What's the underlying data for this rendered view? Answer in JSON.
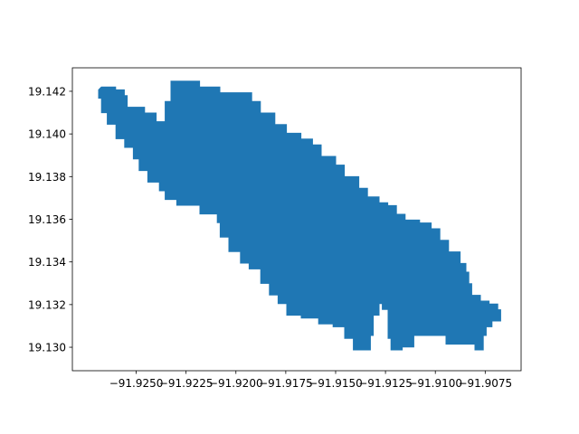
{
  "chart_data": {
    "type": "area",
    "title": "",
    "xlabel": "",
    "ylabel": "",
    "xlim": [
      -91.9282,
      -91.9057
    ],
    "ylim": [
      19.1289,
      19.1431
    ],
    "grid": false,
    "legend": "none",
    "x_ticks": [
      {
        "value": -91.925,
        "label": "−91.9250"
      },
      {
        "value": -91.9225,
        "label": "−91.9225"
      },
      {
        "value": -91.92,
        "label": "−91.9200"
      },
      {
        "value": -91.9175,
        "label": "−91.9175"
      },
      {
        "value": -91.915,
        "label": "−91.9150"
      },
      {
        "value": -91.9125,
        "label": "−91.9125"
      },
      {
        "value": -91.91,
        "label": "−91.9100"
      },
      {
        "value": -91.9075,
        "label": "−91.9075"
      }
    ],
    "y_ticks": [
      {
        "value": 19.13,
        "label": "19.130"
      },
      {
        "value": 19.132,
        "label": "19.132"
      },
      {
        "value": 19.134,
        "label": "19.134"
      },
      {
        "value": 19.136,
        "label": "19.136"
      },
      {
        "value": 19.138,
        "label": "19.138"
      },
      {
        "value": 19.14,
        "label": "19.140"
      },
      {
        "value": 19.142,
        "label": "19.142"
      }
    ],
    "fill_color": "#1f77b4",
    "region_polygon": [
      [
        -91.9268,
        19.1422
      ],
      [
        -91.926,
        19.1421
      ],
      [
        -91.9256,
        19.1418
      ],
      [
        -91.9255,
        19.1413
      ],
      [
        -91.925,
        19.1412
      ],
      [
        -91.9245,
        19.141
      ],
      [
        -91.924,
        19.1406
      ],
      [
        -91.9236,
        19.1405
      ],
      [
        -91.9235,
        19.1415
      ],
      [
        -91.9233,
        19.1425
      ],
      [
        -91.9225,
        19.1425
      ],
      [
        -91.9218,
        19.1422
      ],
      [
        -91.9208,
        19.1419
      ],
      [
        -91.9202,
        19.142
      ],
      [
        -91.9196,
        19.1419
      ],
      [
        -91.9192,
        19.1415
      ],
      [
        -91.9187,
        19.141
      ],
      [
        -91.9181,
        19.1405
      ],
      [
        -91.9175,
        19.14
      ],
      [
        -91.9168,
        19.1398
      ],
      [
        -91.9162,
        19.1395
      ],
      [
        -91.9157,
        19.139
      ],
      [
        -91.915,
        19.1385
      ],
      [
        -91.9145,
        19.138
      ],
      [
        -91.9139,
        19.1375
      ],
      [
        -91.9134,
        19.137
      ],
      [
        -91.9128,
        19.1368
      ],
      [
        -91.9124,
        19.1366
      ],
      [
        -91.9119,
        19.1363
      ],
      [
        -91.9115,
        19.136
      ],
      [
        -91.9108,
        19.1358
      ],
      [
        -91.9102,
        19.1355
      ],
      [
        -91.9097,
        19.135
      ],
      [
        -91.9093,
        19.1345
      ],
      [
        -91.9088,
        19.134
      ],
      [
        -91.9084,
        19.1335
      ],
      [
        -91.9083,
        19.133
      ],
      [
        -91.9082,
        19.1325
      ],
      [
        -91.9078,
        19.1322
      ],
      [
        -91.9073,
        19.132
      ],
      [
        -91.9068,
        19.1317
      ],
      [
        -91.9067,
        19.1312
      ],
      [
        -91.9071,
        19.131
      ],
      [
        -91.9074,
        19.1305
      ],
      [
        -91.9076,
        19.1299
      ],
      [
        -91.908,
        19.1301
      ],
      [
        -91.9088,
        19.1302
      ],
      [
        -91.9095,
        19.1306
      ],
      [
        -91.9102,
        19.1305
      ],
      [
        -91.9108,
        19.1306
      ],
      [
        -91.911,
        19.13
      ],
      [
        -91.9117,
        19.1298
      ],
      [
        -91.9122,
        19.1304
      ],
      [
        -91.9124,
        19.1317
      ],
      [
        -91.9126,
        19.132
      ],
      [
        -91.9128,
        19.1315
      ],
      [
        -91.9131,
        19.1305
      ],
      [
        -91.9133,
        19.1298
      ],
      [
        -91.9137,
        19.1298
      ],
      [
        -91.9141,
        19.1304
      ],
      [
        -91.9145,
        19.131
      ],
      [
        -91.9151,
        19.1311
      ],
      [
        -91.9158,
        19.1313
      ],
      [
        -91.9168,
        19.1315
      ],
      [
        -91.9174,
        19.132
      ],
      [
        -91.9179,
        19.1325
      ],
      [
        -91.9184,
        19.133
      ],
      [
        -91.9188,
        19.1336
      ],
      [
        -91.9193,
        19.134
      ],
      [
        -91.9198,
        19.1345
      ],
      [
        -91.9203,
        19.1351
      ],
      [
        -91.9208,
        19.1358
      ],
      [
        -91.921,
        19.1363
      ],
      [
        -91.9218,
        19.1366
      ],
      [
        -91.9225,
        19.1367
      ],
      [
        -91.923,
        19.1369
      ],
      [
        -91.9235,
        19.1373
      ],
      [
        -91.9239,
        19.1378
      ],
      [
        -91.9244,
        19.1383
      ],
      [
        -91.9248,
        19.1388
      ],
      [
        -91.9252,
        19.1393
      ],
      [
        -91.9256,
        19.1398
      ],
      [
        -91.926,
        19.1404
      ],
      [
        -91.9264,
        19.141
      ],
      [
        -91.9268,
        19.1416
      ],
      [
        -91.9269,
        19.1421
      ]
    ]
  }
}
